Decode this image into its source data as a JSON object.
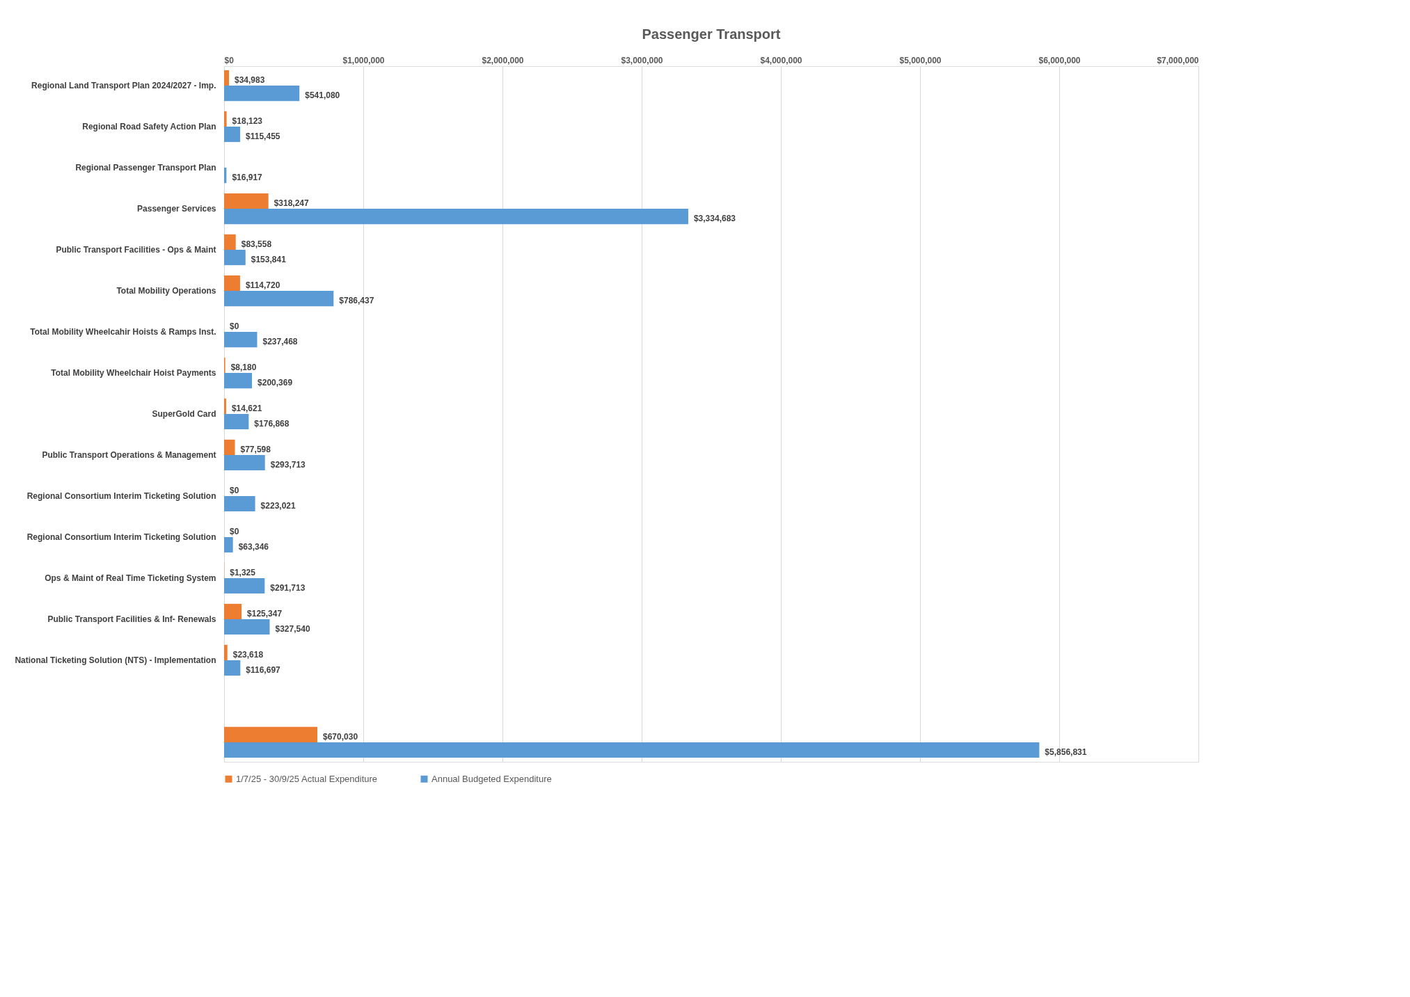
{
  "chart_data": {
    "type": "bar",
    "orientation": "horizontal",
    "title": "Passenger Transport",
    "categories": [
      "Regional Land Transport Plan 2024/2027 - Imp.",
      "Regional Road Safety Action Plan",
      "Regional Passenger Transport Plan",
      "Passenger Services",
      "Public Transport Facilities - Ops & Maint",
      "Total Mobility Operations",
      "Total Mobility Wheelcahir Hoists & Ramps Inst.",
      "Total Mobility Wheelchair Hoist Payments",
      "SuperGold Card",
      "Public Transport Operations & Management",
      "Regional Consortium Interim Ticketing Solution",
      "Regional Consortium Interim Ticketing Solution",
      "Ops & Maint of Real Time Ticketing System",
      "Public Transport Facilities & Inf- Renewals",
      "National Ticketing Solution (NTS) - Implementation",
      null,
      null
    ],
    "series": [
      {
        "name": "1/7/25 - 30/9/25 Actual Expenditure",
        "color": "#ed7d31",
        "values": [
          34983,
          18123,
          null,
          318247,
          83558,
          114720,
          0,
          8180,
          14621,
          77598,
          0,
          0,
          1325,
          125347,
          23618,
          null,
          670030
        ],
        "value_labels": [
          "$34,983",
          "$18,123",
          null,
          "$318,247",
          "$83,558",
          "$114,720",
          "$0",
          "$8,180",
          "$14,621",
          "$77,598",
          "$0",
          "$0",
          "$1,325",
          "$125,347",
          "$23,618",
          null,
          "$670,030"
        ]
      },
      {
        "name": "Annual Budgeted Expenditure",
        "color": "#5b9bd5",
        "values": [
          541080,
          115455,
          16917,
          3334683,
          153841,
          786437,
          237468,
          200369,
          176868,
          293713,
          223021,
          63346,
          291713,
          327540,
          116697,
          null,
          5856831
        ],
        "value_labels": [
          "$541,080",
          "$115,455",
          "$16,917",
          "$3,334,683",
          "$153,841",
          "$786,437",
          "$237,468",
          "$200,369",
          "$176,868",
          "$293,713",
          "$223,021",
          "$63,346",
          "$291,713",
          "$327,540",
          "$116,697",
          null,
          "$5,856,831"
        ]
      }
    ],
    "xlim": [
      0,
      7000000
    ],
    "xticks": [
      {
        "value": 0,
        "label": "$0"
      },
      {
        "value": 1000000,
        "label": "$1,000,000"
      },
      {
        "value": 2000000,
        "label": "$2,000,000"
      },
      {
        "value": 3000000,
        "label": "$3,000,000"
      },
      {
        "value": 4000000,
        "label": "$4,000,000"
      },
      {
        "value": 5000000,
        "label": "$5,000,000"
      },
      {
        "value": 6000000,
        "label": "$6,000,000"
      },
      {
        "value": 7000000,
        "label": "$7,000,000"
      }
    ],
    "grid": "x",
    "legend": "bottom"
  }
}
